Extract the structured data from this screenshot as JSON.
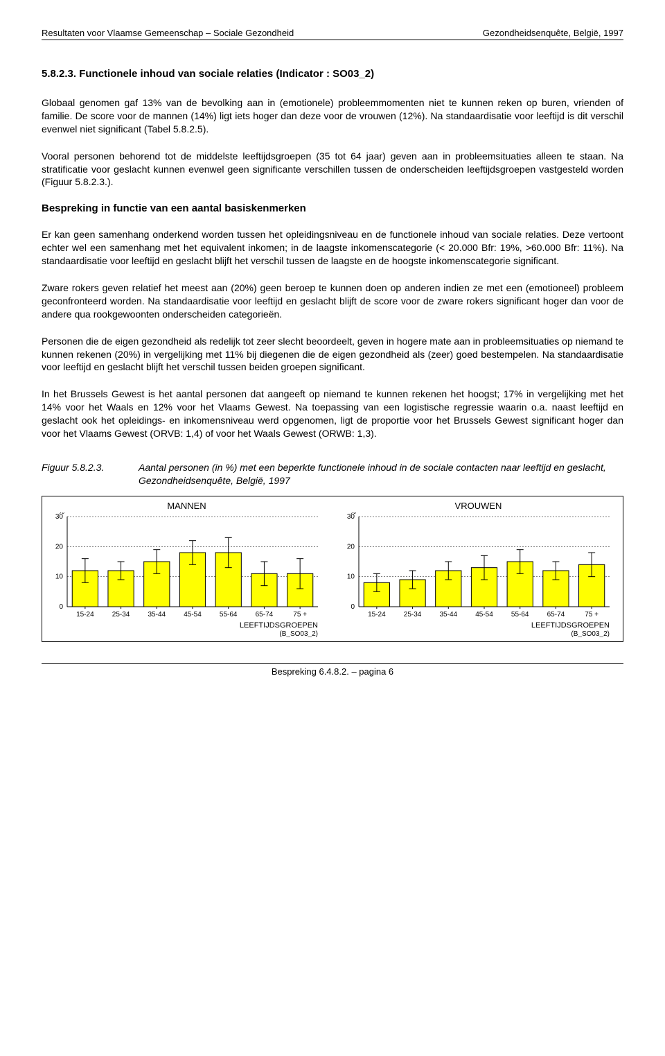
{
  "header": {
    "left": "Resultaten voor Vlaamse Gemeenschap – Sociale Gezondheid",
    "right": "Gezondheidsenquête, België, 1997"
  },
  "section_heading": "5.8.2.3.    Functionele inhoud van sociale relaties (Indicator : SO03_2)",
  "paras": {
    "p1": "Globaal genomen gaf 13% van de bevolking aan in (emotionele) probleemmomenten niet te kunnen reken op buren, vrienden of familie. De score voor de mannen (14%) ligt iets hoger dan deze voor de vrouwen (12%). Na standaardisatie voor leeftijd is dit verschil evenwel niet significant (Tabel 5.8.2.5).",
    "p2": "Vooral personen behorend tot de middelste leeftijdsgroepen (35 tot 64 jaar) geven aan in probleemsituaties alleen te staan. Na stratificatie voor geslacht kunnen evenwel geen significante verschillen tussen de onderscheiden leeftijdsgroepen vastgesteld worden (Figuur 5.8.2.3.).",
    "sub": "Bespreking in functie van een aantal basiskenmerken",
    "p3": "Er kan geen samenhang onderkend worden tussen het opleidingsniveau en de functionele inhoud van sociale relaties. Deze vertoont echter wel een samenhang met het equivalent inkomen; in de laagste inkomenscategorie (< 20.000 Bfr: 19%, >60.000 Bfr: 11%). Na standaardisatie voor leeftijd en geslacht blijft het verschil tussen de laagste en de hoogste inkomenscategorie significant.",
    "p4": "Zware rokers geven relatief het meest aan (20%) geen beroep te kunnen doen op anderen indien ze met een (emotioneel) probleem geconfronteerd worden. Na standaardisatie voor leeftijd en geslacht blijft de score voor de zware rokers significant hoger dan voor de andere qua rookgewoonten onderscheiden categorieën.",
    "p5": "Personen die de eigen gezondheid als redelijk tot zeer slecht beoordeelt, geven in hogere mate aan in probleemsituaties op niemand te kunnen rekenen (20%) in vergelijking met 11% bij diegenen die de eigen gezondheid als (zeer) goed bestempelen. Na standaardisatie voor leeftijd en geslacht blijft het verschil tussen beiden groepen significant.",
    "p6": "In het Brussels Gewest is het aantal personen dat aangeeft op niemand te kunnen rekenen het hoogst; 17% in vergelijking met het 14% voor het Waals en 12% voor het Vlaams Gewest. Na toepassing van een logistische regressie waarin o.a. naast leeftijd en geslacht ook het opleidings- en inkomensniveau werd opgenomen, ligt de proportie voor het Brussels Gewest significant hoger dan voor het Vlaams Gewest (ORVB: 1,4) of voor het Waals Gewest (ORWB: 1,3)."
  },
  "figure": {
    "label": "Figuur 5.8.2.3.",
    "caption": "Aantal  personen (in %) met  een beperkte functionele inhoud in de  sociale contacten naar leeftijd en geslacht, Gezondheidsenquête, België,  1997"
  },
  "charts": {
    "categories": [
      "15-24",
      "25-34",
      "35-44",
      "45-54",
      "55-64",
      "65-74",
      "75 +"
    ],
    "ylim": [
      0,
      30
    ],
    "ytick_step": 10,
    "xlabel": "LEEFTIJDSGROEPEN",
    "sublabel": "(B_SO03_2)",
    "ypct": "%",
    "bar_color": "#ffff00",
    "bar_stroke": "#000000",
    "grid_color": "#000000",
    "bg": "#ffffff",
    "mannen": {
      "title": "MANNEN",
      "values": [
        12,
        12,
        15,
        18,
        18,
        11,
        11
      ],
      "err": [
        4,
        3,
        4,
        4,
        5,
        4,
        5
      ]
    },
    "vrouwen": {
      "title": "VROUWEN",
      "values": [
        8,
        9,
        12,
        13,
        15,
        12,
        14
      ],
      "err": [
        3,
        3,
        3,
        4,
        4,
        3,
        4
      ]
    }
  },
  "footer": "Bespreking 6.4.8.2. – pagina 6"
}
